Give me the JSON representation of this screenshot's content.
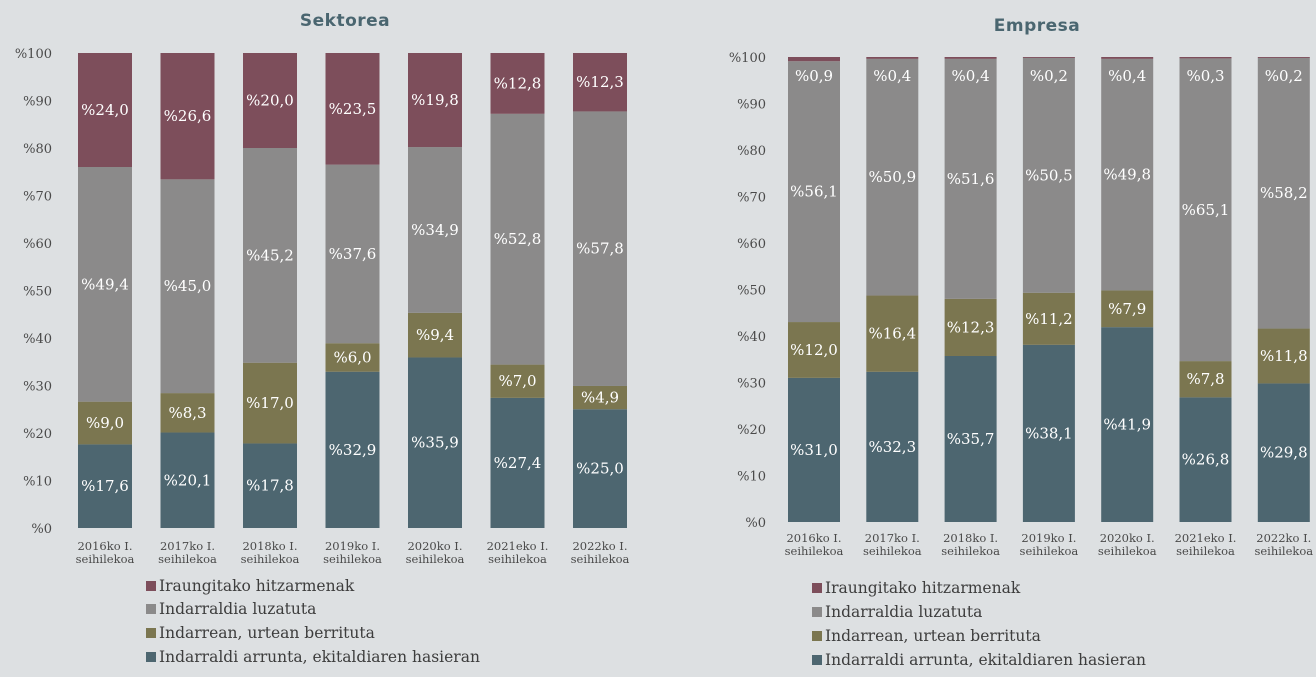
{
  "chart_data": [
    {
      "type": "bar",
      "stacked": true,
      "title": "Sektorea",
      "categories": [
        "2016ko I. seihilekoa",
        "2017ko I. seihilekoa",
        "2018ko I. seihilekoa",
        "2019ko I. seihilekoa",
        "2020ko I. seihilekoa",
        "2021eko I. seihilekoa",
        "2022ko I. seihilekoa"
      ],
      "ylim": [
        0,
        100
      ],
      "yticks": [
        "%0",
        "%10",
        "%20",
        "%30",
        "%40",
        "%50",
        "%60",
        "%70",
        "%80",
        "%90",
        "%100"
      ],
      "legend_position": "bottom",
      "grid": false,
      "series": [
        {
          "name": "Indarraldi arrunta, ekitaldiaren hasieran",
          "color": "#4d6670",
          "values": [
            17.6,
            20.1,
            17.8,
            32.9,
            35.9,
            27.4,
            25.0
          ],
          "labels": [
            "%17,6",
            "%20,1",
            "%17,8",
            "%32,9",
            "%35,9",
            "%27,4",
            "%25,0"
          ]
        },
        {
          "name": "Indarrean, urtean berrituta",
          "color": "#7b7650",
          "values": [
            9.0,
            8.3,
            17.0,
            6.0,
            9.4,
            7.0,
            4.9
          ],
          "labels": [
            "%9,0",
            "%8,3",
            "%17,0",
            "%6,0",
            "%9,4",
            "%7,0",
            "%4,9"
          ]
        },
        {
          "name": "Indarraldia luzatuta",
          "color": "#8b8a8a",
          "values": [
            49.4,
            45.0,
            45.2,
            37.6,
            34.9,
            52.8,
            57.8
          ],
          "labels": [
            "%49,4",
            "%45,0",
            "%45,2",
            "%37,6",
            "%34,9",
            "%52,8",
            "%57,8"
          ]
        },
        {
          "name": "Iraungitako hitzarmenak",
          "color": "#7d4e5b",
          "values": [
            24.0,
            26.6,
            20.0,
            23.5,
            19.8,
            12.8,
            12.3
          ],
          "labels": [
            "%24,0",
            "%26,6",
            "%20,0",
            "%23,5",
            "%19,8",
            "%12,8",
            "%12,3"
          ]
        }
      ]
    },
    {
      "type": "bar",
      "stacked": true,
      "title": "Empresa",
      "categories": [
        "2016ko I. seihilekoa",
        "2017ko I. seihilekoa",
        "2018ko I. seihilekoa",
        "2019ko I. seihilekoa",
        "2020ko I. seihilekoa",
        "2021eko I. seihilekoa",
        "2022ko I. seihilekoa"
      ],
      "ylim": [
        0,
        100
      ],
      "yticks": [
        "%0",
        "%10",
        "%20",
        "%30",
        "%40",
        "%50",
        "%60",
        "%70",
        "%80",
        "%90",
        "%100"
      ],
      "legend_position": "bottom",
      "grid": false,
      "series": [
        {
          "name": "Indarraldi arrunta, ekitaldiaren hasieran",
          "color": "#4d6670",
          "values": [
            31.0,
            32.3,
            35.7,
            38.1,
            41.9,
            26.8,
            29.8
          ],
          "labels": [
            "%31,0",
            "%32,3",
            "%35,7",
            "%38,1",
            "%41,9",
            "%26,8",
            "%29,8"
          ]
        },
        {
          "name": "Indarrean, urtean berrituta",
          "color": "#7b7650",
          "values": [
            12.0,
            16.4,
            12.3,
            11.2,
            7.9,
            7.8,
            11.8
          ],
          "labels": [
            "%12,0",
            "%16,4",
            "%12,3",
            "%11,2",
            "%7,9",
            "%7,8",
            "%11,8"
          ]
        },
        {
          "name": "Indarraldia luzatuta",
          "color": "#8b8a8a",
          "values": [
            56.1,
            50.9,
            51.6,
            50.5,
            49.8,
            65.1,
            58.2
          ],
          "labels": [
            "%56,1",
            "%50,9",
            "%51,6",
            "%50,5",
            "%49,8",
            "%65,1",
            "%58,2"
          ]
        },
        {
          "name": "Iraungitako hitzarmenak",
          "color": "#7d4e5b",
          "values": [
            0.9,
            0.4,
            0.4,
            0.2,
            0.4,
            0.3,
            0.2
          ],
          "labels": [
            "%0,9",
            "%0,4",
            "%0,4",
            "%0,2",
            "%0,4",
            "%0,3",
            "%0,2"
          ]
        }
      ]
    }
  ]
}
